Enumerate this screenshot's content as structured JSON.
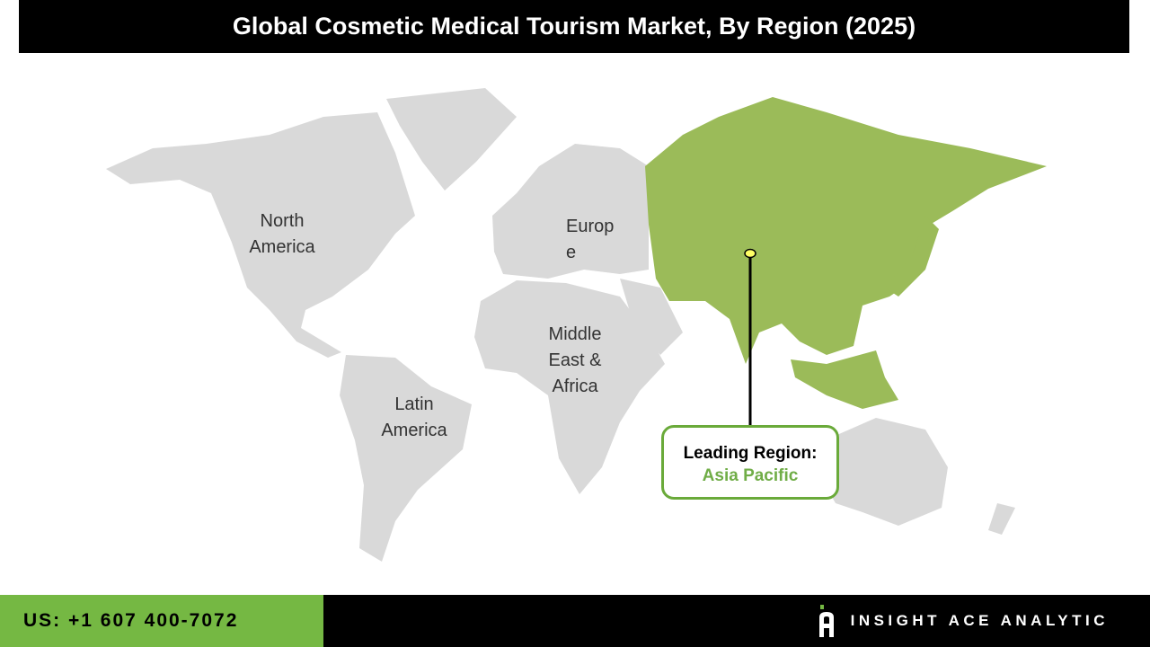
{
  "title": "Global Cosmetic Medical Tourism Market, By Region (2025)",
  "regions": {
    "north_america": [
      "North",
      "America"
    ],
    "europe": [
      "Europ",
      "e"
    ],
    "middle_east_africa": [
      "Middle",
      "East &",
      "Africa"
    ],
    "latin_america": [
      "Latin",
      "America"
    ]
  },
  "callout": {
    "label": "Leading Region:",
    "value": "Asia Pacific"
  },
  "colors": {
    "highlight": "#9bbb59",
    "land": "#d9d9d9",
    "accent": "#75b843"
  },
  "footer": {
    "phone": "US: +1 607 400-7072",
    "brand": "INSIGHT ACE ANALYTIC",
    "logo_icon": "ia-logo-icon"
  }
}
